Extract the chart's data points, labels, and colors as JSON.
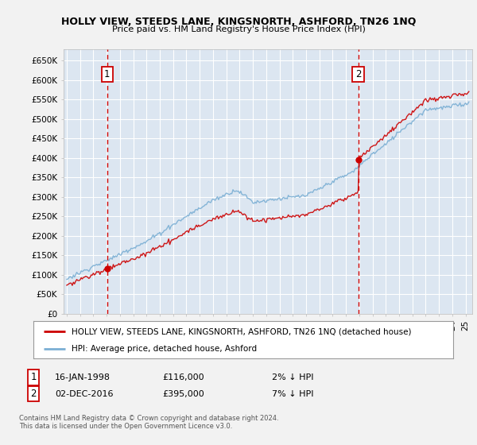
{
  "title": "HOLLY VIEW, STEEDS LANE, KINGSNORTH, ASHFORD, TN26 1NQ",
  "subtitle": "Price paid vs. HM Land Registry's House Price Index (HPI)",
  "ylabel_ticks": [
    "£0",
    "£50K",
    "£100K",
    "£150K",
    "£200K",
    "£250K",
    "£300K",
    "£350K",
    "£400K",
    "£450K",
    "£500K",
    "£550K",
    "£600K",
    "£650K"
  ],
  "ytick_values": [
    0,
    50000,
    100000,
    150000,
    200000,
    250000,
    300000,
    350000,
    400000,
    450000,
    500000,
    550000,
    600000,
    650000
  ],
  "ylim": [
    0,
    680000
  ],
  "xlim_start": 1994.75,
  "xlim_end": 2025.5,
  "background_color": "#dce6f1",
  "plot_bg_color": "#dce6f1",
  "grid_color": "#ffffff",
  "sale1_date": 1998.04,
  "sale1_price": 116000,
  "sale2_date": 2016.92,
  "sale2_price": 395000,
  "legend_line1": "HOLLY VIEW, STEEDS LANE, KINGSNORTH, ASHFORD, TN26 1NQ (detached house)",
  "legend_line2": "HPI: Average price, detached house, Ashford",
  "note1_label": "1",
  "note1_date": "16-JAN-1998",
  "note1_price": "£116,000",
  "note1_hpi": "2% ↓ HPI",
  "note2_label": "2",
  "note2_date": "02-DEC-2016",
  "note2_price": "£395,000",
  "note2_hpi": "7% ↓ HPI",
  "footer": "Contains HM Land Registry data © Crown copyright and database right 2024.\nThis data is licensed under the Open Government Licence v3.0.",
  "sale_line_color": "#cc0000",
  "hpi_line_color": "#7bafd4",
  "price_line_color": "#cc0000",
  "fig_bg": "#f2f2f2"
}
